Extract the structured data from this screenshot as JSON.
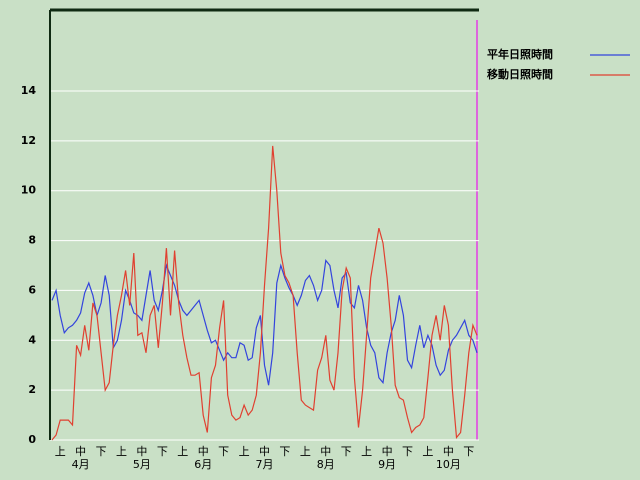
{
  "chart_data": {
    "type": "line",
    "categories": [
      null,
      null,
      "上",
      null,
      null,
      null,
      null,
      "中",
      null,
      null,
      null,
      null,
      "下",
      null,
      null,
      null,
      null,
      "上",
      null,
      null,
      null,
      null,
      "中",
      null,
      null,
      null,
      null,
      "下",
      null,
      null,
      null,
      null,
      "上",
      null,
      null,
      null,
      null,
      "中",
      null,
      null,
      null,
      null,
      "下",
      null,
      null,
      null,
      null,
      "上",
      null,
      null,
      null,
      null,
      "中",
      null,
      null,
      null,
      null,
      "下",
      null,
      null,
      null,
      null,
      "上",
      null,
      null,
      null,
      null,
      "中",
      null,
      null,
      null,
      null,
      "下",
      null,
      null,
      null,
      null,
      "上",
      null,
      null,
      null,
      null,
      "中",
      null,
      null,
      null,
      null,
      "下",
      null,
      null,
      null,
      null,
      "上",
      null,
      null,
      null,
      null,
      "中",
      null,
      null,
      null,
      null,
      "下",
      null,
      null
    ],
    "month_labels": [
      null,
      null,
      null,
      null,
      null,
      null,
      null,
      "4月",
      null,
      null,
      null,
      null,
      null,
      null,
      null,
      null,
      null,
      null,
      null,
      null,
      null,
      null,
      "5月",
      null,
      null,
      null,
      null,
      null,
      null,
      null,
      null,
      null,
      null,
      null,
      null,
      null,
      null,
      "6月",
      null,
      null,
      null,
      null,
      null,
      null,
      null,
      null,
      null,
      null,
      null,
      null,
      null,
      null,
      "7月",
      null,
      null,
      null,
      null,
      null,
      null,
      null,
      null,
      null,
      null,
      null,
      null,
      null,
      null,
      "8月",
      null,
      null,
      null,
      null,
      null,
      null,
      null,
      null,
      null,
      null,
      null,
      null,
      null,
      null,
      "9月",
      null,
      null,
      null,
      null,
      null,
      null,
      null,
      null,
      null,
      null,
      null,
      null,
      null,
      null,
      "10月",
      null,
      null,
      null,
      null,
      null,
      null,
      null
    ],
    "series": [
      {
        "name": "平年日照時間",
        "color": "#3344dd",
        "values": [
          5.6,
          6.0,
          5.0,
          4.3,
          4.5,
          4.6,
          4.8,
          5.1,
          5.9,
          6.3,
          5.8,
          5.0,
          5.5,
          6.6,
          5.8,
          3.7,
          4.0,
          4.8,
          6.0,
          5.6,
          5.1,
          5.0,
          4.8,
          5.8,
          6.8,
          5.6,
          5.2,
          6.0,
          7.0,
          6.6,
          6.2,
          5.6,
          5.2,
          5.0,
          5.2,
          5.4,
          5.6,
          5.0,
          4.4,
          3.9,
          4.0,
          3.6,
          3.2,
          3.5,
          3.3,
          3.3,
          3.9,
          3.8,
          3.2,
          3.3,
          4.5,
          5.0,
          3.0,
          2.2,
          3.5,
          6.3,
          7.0,
          6.5,
          6.1,
          5.8,
          5.4,
          5.8,
          6.4,
          6.6,
          6.2,
          5.6,
          6.0,
          7.2,
          7.0,
          6.0,
          5.3,
          6.5,
          6.7,
          5.5,
          5.3,
          6.2,
          5.6,
          4.5,
          3.8,
          3.5,
          2.5,
          2.3,
          3.5,
          4.3,
          4.8,
          5.8,
          5.0,
          3.2,
          2.9,
          3.8,
          4.6,
          3.7,
          4.2,
          3.8,
          3.0,
          2.6,
          2.8,
          3.6,
          4.0,
          4.2,
          4.5,
          4.8,
          4.2,
          4.0,
          3.5
        ]
      },
      {
        "name": "移動日照時間",
        "color": "#e04030",
        "values": [
          0,
          0.2,
          0.8,
          0.8,
          0.8,
          0.6,
          3.8,
          3.4,
          4.6,
          3.6,
          5.5,
          5.0,
          3.5,
          2.0,
          2.3,
          3.8,
          5.0,
          5.8,
          6.8,
          5.4,
          7.5,
          4.2,
          4.3,
          3.5,
          5.0,
          5.4,
          3.7,
          5.5,
          7.7,
          5.0,
          7.6,
          5.5,
          4.2,
          3.3,
          2.6,
          2.6,
          2.7,
          1.0,
          0.3,
          2.5,
          3.0,
          4.5,
          5.6,
          1.8,
          1.0,
          0.8,
          0.9,
          1.4,
          1.0,
          1.2,
          1.8,
          3.5,
          6.2,
          8.5,
          11.8,
          10.0,
          7.5,
          6.6,
          6.3,
          5.8,
          3.5,
          1.6,
          1.4,
          1.3,
          1.2,
          2.8,
          3.3,
          4.2,
          2.4,
          2.0,
          3.5,
          6.0,
          6.9,
          6.5,
          2.5,
          0.5,
          2.0,
          4.2,
          6.5,
          7.5,
          8.5,
          7.9,
          6.5,
          4.6,
          2.2,
          1.7,
          1.6,
          0.9,
          0.3,
          0.5,
          0.6,
          0.9,
          2.5,
          4.2,
          5.0,
          4.0,
          5.4,
          4.6,
          2.0,
          0.1,
          0.3,
          1.8,
          3.5,
          4.6,
          4.2
        ]
      }
    ],
    "ylim": [
      0,
      17.25
    ],
    "yticks": [
      0,
      2,
      4,
      6,
      8,
      10,
      12,
      14
    ],
    "grid": true
  }
}
